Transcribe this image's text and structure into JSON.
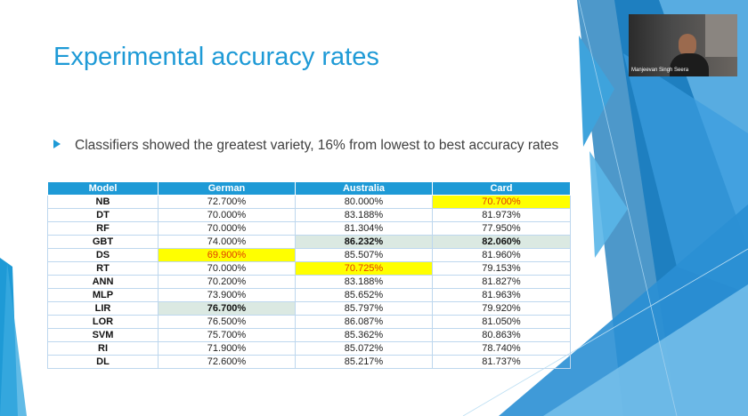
{
  "slide": {
    "title": "Experimental accuracy rates",
    "bullet": "Classifiers showed the greatest variety, 16% from lowest to best accuracy rates"
  },
  "table": {
    "headers": [
      "Model",
      "German",
      "Australia",
      "Card"
    ],
    "rows": [
      {
        "model": "NB",
        "german": "72.700%",
        "australia": "80.000%",
        "card": "70.700%"
      },
      {
        "model": "DT",
        "german": "70.000%",
        "australia": "83.188%",
        "card": "81.973%"
      },
      {
        "model": "RF",
        "german": "70.000%",
        "australia": "81.304%",
        "card": "77.950%"
      },
      {
        "model": "GBT",
        "german": "74.000%",
        "australia": "86.232%",
        "card": "82.060%"
      },
      {
        "model": "DS",
        "german": "69.900%",
        "australia": "85.507%",
        "card": "81.960%"
      },
      {
        "model": "RT",
        "german": "70.000%",
        "australia": "70.725%",
        "card": "79.153%"
      },
      {
        "model": "ANN",
        "german": "70.200%",
        "australia": "83.188%",
        "card": "81.827%"
      },
      {
        "model": "MLP",
        "german": "73.900%",
        "australia": "85.652%",
        "card": "81.963%"
      },
      {
        "model": "LIR",
        "german": "76.700%",
        "australia": "85.797%",
        "card": "79.920%"
      },
      {
        "model": "LOR",
        "german": "76.500%",
        "australia": "86.087%",
        "card": "81.050%"
      },
      {
        "model": "SVM",
        "german": "75.700%",
        "australia": "85.362%",
        "card": "80.863%"
      },
      {
        "model": "RI",
        "german": "71.900%",
        "australia": "85.072%",
        "card": "78.740%"
      },
      {
        "model": "DL",
        "german": "72.600%",
        "australia": "85.217%",
        "card": "81.737%"
      }
    ]
  },
  "video": {
    "participant_name": "Manjeevan Singh Seera"
  },
  "colors": {
    "accent": "#1e9ad6",
    "highlight_low": "#ffff00",
    "highlight_low_text": "#e03c00",
    "highlight_best": "#dbe9e2"
  }
}
